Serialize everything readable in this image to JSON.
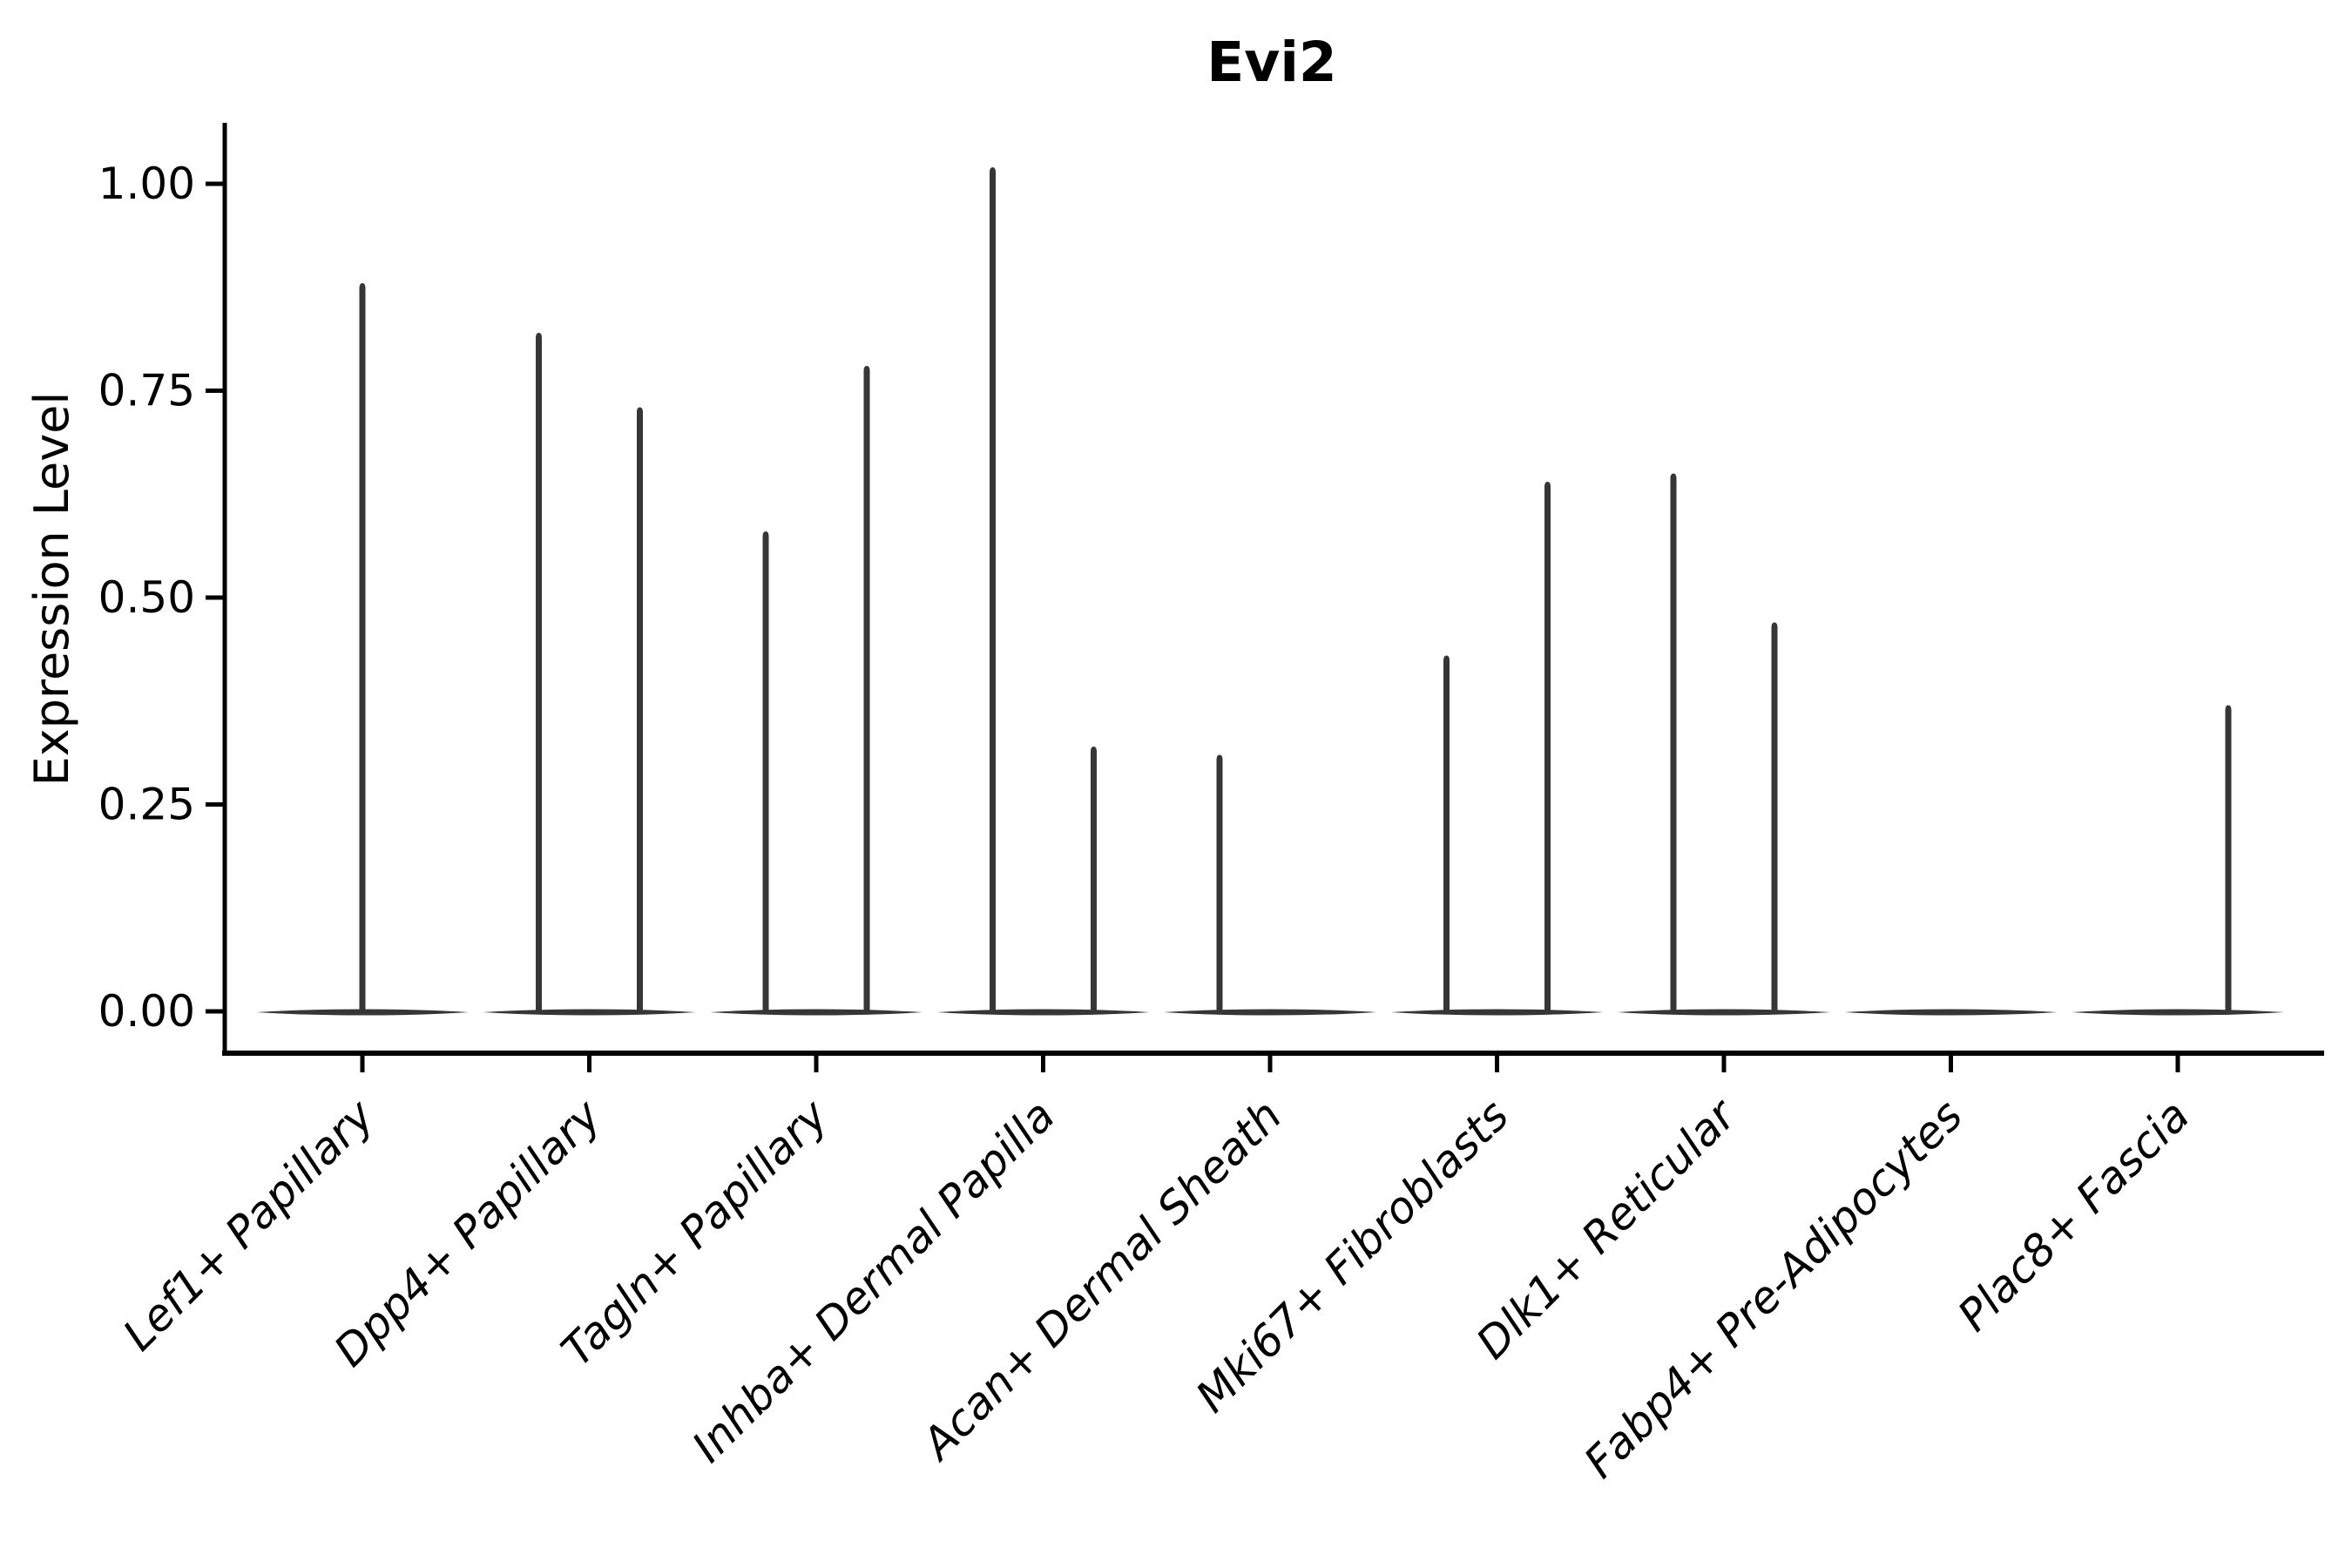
{
  "chart_data": {
    "type": "violin",
    "title": "Evi2",
    "ylabel": "Expression Level",
    "xlabel": "",
    "ytick_values": [
      0.0,
      0.25,
      0.5,
      0.75,
      1.0
    ],
    "ytick_labels": [
      "0.00",
      "0.25",
      "0.50",
      "0.75",
      "1.00"
    ],
    "ylim": [
      -0.05,
      1.07
    ],
    "grid": false,
    "legend": "none",
    "violin_color": "#363636",
    "axis_color": "#000000",
    "baseline_value": 0.0,
    "categories": [
      "Lef1+ Papillary",
      "Dpp4+ Papillary",
      "Tagln+ Papillary",
      "Inhba+ Dermal Papilla",
      "Acan+ Dermal Sheath",
      "Mki67+ Fibroblasts",
      "Dlk1+ Reticular",
      "Fabp4+ Pre-Adipocytes",
      "Plac8+ Fascia"
    ],
    "violins": [
      {
        "category": "Lef1+ Papillary",
        "groups": [
          {
            "position": "center",
            "peak": 0.88
          }
        ]
      },
      {
        "category": "Dpp4+ Papillary",
        "groups": [
          {
            "position": "left",
            "peak": 0.82
          },
          {
            "position": "right",
            "peak": 0.73
          }
        ]
      },
      {
        "category": "Tagln+ Papillary",
        "groups": [
          {
            "position": "left",
            "peak": 0.58
          },
          {
            "position": "right",
            "peak": 0.78
          }
        ]
      },
      {
        "category": "Inhba+ Dermal Papilla",
        "groups": [
          {
            "position": "left",
            "peak": 1.02
          },
          {
            "position": "right",
            "peak": 0.32
          }
        ]
      },
      {
        "category": "Acan+ Dermal Sheath",
        "groups": [
          {
            "position": "left",
            "peak": 0.31
          },
          {
            "position": "right",
            "peak": 0.0
          }
        ]
      },
      {
        "category": "Mki67+ Fibroblasts",
        "groups": [
          {
            "position": "left",
            "peak": 0.43
          },
          {
            "position": "right",
            "peak": 0.64
          }
        ]
      },
      {
        "category": "Dlk1+ Reticular",
        "groups": [
          {
            "position": "left",
            "peak": 0.65
          },
          {
            "position": "right",
            "peak": 0.47
          }
        ]
      },
      {
        "category": "Fabp4+ Pre-Adipocytes",
        "groups": [
          {
            "position": "center",
            "peak": 0.0
          }
        ]
      },
      {
        "category": "Plac8+ Fascia",
        "groups": [
          {
            "position": "left",
            "peak": 0.0
          },
          {
            "position": "right",
            "peak": 0.37
          }
        ]
      }
    ]
  }
}
